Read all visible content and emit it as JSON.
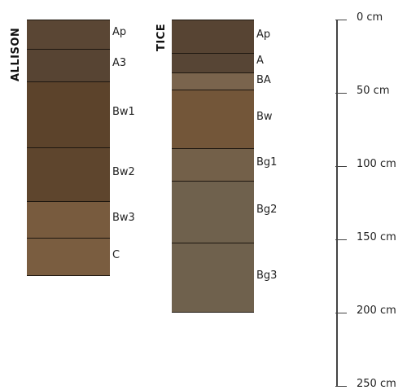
{
  "profiles": [
    {
      "name": "ALLISON",
      "horizons": [
        {
          "label": "Ap",
          "top_cm": 0,
          "bottom_cm": 20,
          "color": "#5a4634"
        },
        {
          "label": "A3",
          "top_cm": 20,
          "bottom_cm": 42,
          "color": "#574433"
        },
        {
          "label": "Bw1",
          "top_cm": 42,
          "bottom_cm": 87,
          "color": "#5c432b"
        },
        {
          "label": "Bw2",
          "top_cm": 87,
          "bottom_cm": 124,
          "color": "#5e452d"
        },
        {
          "label": "Bw3",
          "top_cm": 124,
          "bottom_cm": 149,
          "color": "#785b3e"
        },
        {
          "label": "C",
          "top_cm": 149,
          "bottom_cm": 175,
          "color": "#7a5d40"
        }
      ]
    },
    {
      "name": "TICE",
      "horizons": [
        {
          "label": "Ap",
          "top_cm": 0,
          "bottom_cm": 23,
          "color": "#574433"
        },
        {
          "label": "A",
          "top_cm": 23,
          "bottom_cm": 36,
          "color": "#574535"
        },
        {
          "label": "BA",
          "top_cm": 36,
          "bottom_cm": 48,
          "color": "#7a644d"
        },
        {
          "label": "Bw",
          "top_cm": 48,
          "bottom_cm": 88,
          "color": "#735639"
        },
        {
          "label": "Bg1",
          "top_cm": 88,
          "bottom_cm": 110,
          "color": "#736049"
        },
        {
          "label": "Bg2",
          "top_cm": 110,
          "bottom_cm": 152,
          "color": "#6f614d"
        },
        {
          "label": "Bg3",
          "top_cm": 152,
          "bottom_cm": 200,
          "color": "#6f614d"
        }
      ]
    }
  ],
  "scale": {
    "ticks": [
      {
        "value_cm": 0,
        "label": "0 cm"
      },
      {
        "value_cm": 50,
        "label": "50 cm"
      },
      {
        "value_cm": 100,
        "label": "100 cm"
      },
      {
        "value_cm": 150,
        "label": "150 cm"
      },
      {
        "value_cm": 200,
        "label": "200 cm"
      },
      {
        "value_cm": 250,
        "label": "250 cm"
      }
    ]
  }
}
